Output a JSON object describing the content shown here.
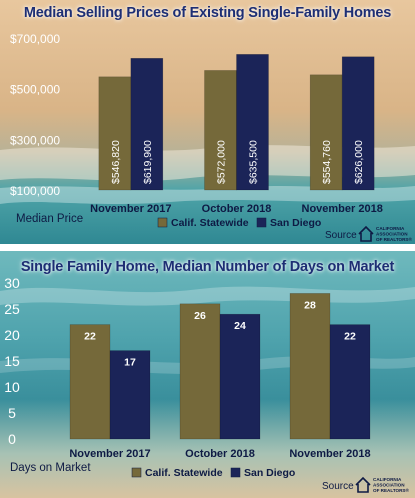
{
  "colors": {
    "calif": "#75693a",
    "san_diego": "#1b2458",
    "title": "#1d2e74"
  },
  "branding": {
    "source_label": "Source",
    "logo_icon": "house-outline-icon",
    "logo_lines": [
      "CALIFORNIA",
      "ASSOCIATION",
      "OF REALTORS®"
    ]
  },
  "chart_data": [
    {
      "type": "bar",
      "title": "Median Selling Prices of Existing Single-Family Homes",
      "ylabel": "Median Price",
      "ylim": [
        100000,
        700000
      ],
      "yticks": [
        100000,
        300000,
        500000,
        700000
      ],
      "ytick_labels": [
        "$100,000",
        "$300,000",
        "$500,000",
        "$700,000"
      ],
      "categories": [
        "November 2017",
        "October 2018",
        "November 2018"
      ],
      "series": [
        {
          "name": "Calif. Statewide",
          "values": [
            546820,
            572000,
            554760
          ],
          "labels": [
            "$546,820",
            "$572,000",
            "$554,760"
          ]
        },
        {
          "name": "San Diego",
          "values": [
            619900,
            635500,
            626000
          ],
          "labels": [
            "$619,900",
            "$635,500",
            "$626,000"
          ]
        }
      ],
      "legend": "bottom"
    },
    {
      "type": "bar",
      "title": "Single Family Home, Median Number of Days on Market",
      "ylabel": "Days on Market",
      "ylim": [
        0,
        30
      ],
      "yticks": [
        0,
        5,
        10,
        15,
        20,
        25,
        30
      ],
      "ytick_labels": [
        "0",
        "5",
        "10",
        "15",
        "20",
        "25",
        "30"
      ],
      "categories": [
        "November 2017",
        "October 2018",
        "November 2018"
      ],
      "series": [
        {
          "name": "Calif. Statewide",
          "values": [
            22,
            26,
            28
          ],
          "labels": [
            "22",
            "26",
            "28"
          ]
        },
        {
          "name": "San Diego",
          "values": [
            17,
            24,
            22
          ],
          "labels": [
            "17",
            "24",
            "22"
          ]
        }
      ],
      "legend": "bottom"
    }
  ]
}
